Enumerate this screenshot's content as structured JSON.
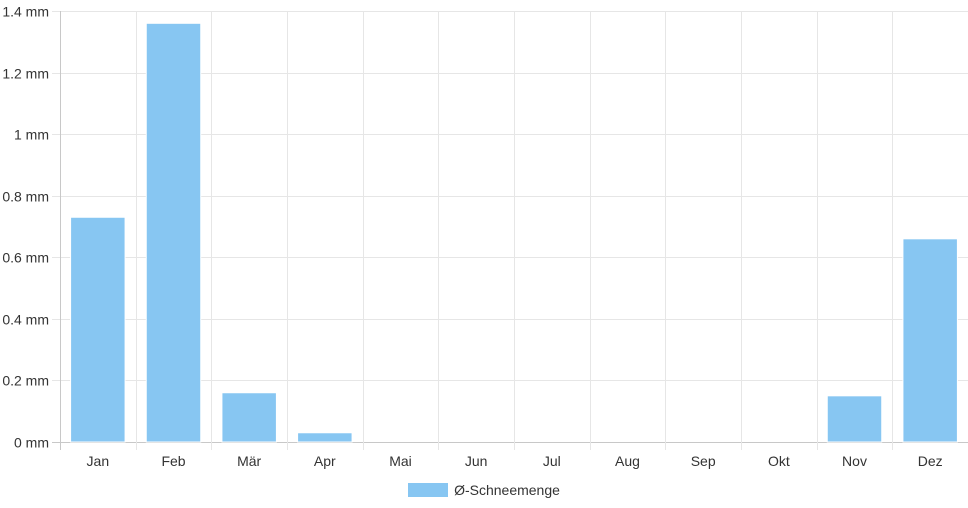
{
  "chart_data": {
    "type": "bar",
    "categories": [
      "Jan",
      "Feb",
      "Mär",
      "Apr",
      "Mai",
      "Jun",
      "Jul",
      "Aug",
      "Sep",
      "Okt",
      "Nov",
      "Dez"
    ],
    "series": [
      {
        "name": "Ø-Schneemenge",
        "color": "#87c6f2",
        "values": [
          0.73,
          1.36,
          0.16,
          0.03,
          0,
          0,
          0,
          0,
          0,
          0,
          0.15,
          0.66
        ]
      }
    ],
    "ylim": [
      0,
      1.4
    ],
    "yticks": [
      "0 mm",
      "0.2 mm",
      "0.4 mm",
      "0.6 mm",
      "0.8 mm",
      "1 mm",
      "1.2 mm",
      "1.4 mm"
    ],
    "ytick_values": [
      0,
      0.2,
      0.4,
      0.6,
      0.8,
      1.0,
      1.2,
      1.4
    ],
    "grid": true,
    "legend_position": "bottom"
  }
}
